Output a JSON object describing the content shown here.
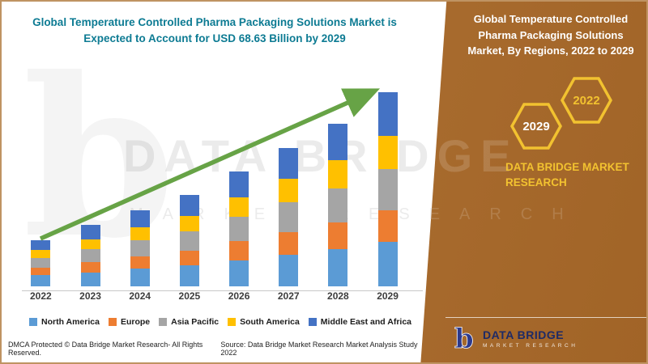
{
  "left_panel": {
    "title": "Global Temperature Controlled Pharma Packaging Solutions Market is Expected to Account for USD 68.63 Billion by 2029",
    "watermark_line1": "DATA BRIDGE",
    "watermark_line2": "MARKET RESEARCH",
    "footer_left": "DMCA Protected © Data Bridge Market Research- All Rights Reserved.",
    "footer_source": "Source: Data Bridge Market Research Market Analysis Study 2022"
  },
  "right_panel": {
    "background_color": "#a96d35",
    "accent_color": "#f2c230",
    "title": "Global Temperature Controlled Pharma Packaging Solutions Market, By Regions, 2022 to 2029",
    "hexagon_back_label": "2022",
    "hexagon_front_label": "2029",
    "brand_text": "DATA BRIDGE MARKET RESEARCH",
    "logo_glyph": "b",
    "logo_text": "DATA BRIDGE",
    "logo_subtext": "MARKET RESEARCH"
  },
  "chart_data": {
    "type": "bar",
    "stacked": true,
    "title": "Global Temperature Controlled Pharma Packaging Solutions Market is Expected to Account for USD 68.63 Billion by 2029",
    "unit": "USD Billion",
    "categories": [
      "2022",
      "2023",
      "2024",
      "2025",
      "2026",
      "2027",
      "2028",
      "2029"
    ],
    "series": [
      {
        "name": "North America",
        "color": "#5b9bd5",
        "values": [
          3.9,
          5.0,
          6.2,
          7.3,
          9.2,
          11.2,
          13.2,
          15.7
        ]
      },
      {
        "name": "Europe",
        "color": "#ed7d31",
        "values": [
          2.8,
          3.6,
          4.5,
          5.3,
          6.7,
          8.1,
          9.5,
          11.2
        ]
      },
      {
        "name": "Asia Pacific",
        "color": "#a5a5a5",
        "values": [
          3.4,
          4.5,
          5.6,
          6.7,
          8.7,
          10.4,
          12.0,
          14.6
        ]
      },
      {
        "name": "South America",
        "color": "#ffc000",
        "values": [
          2.8,
          3.6,
          4.5,
          5.6,
          7.0,
          8.4,
          9.8,
          11.73
        ]
      },
      {
        "name": "Middle East and Africa",
        "color": "#4472c4",
        "values": [
          3.4,
          5.0,
          5.9,
          7.3,
          9.0,
          10.9,
          12.9,
          15.4
        ]
      }
    ],
    "ylim": [
      0,
      70
    ],
    "grid": false,
    "legend_position": "bottom",
    "annotation": "upward trend arrow",
    "trend_arrow_color": "#67a346"
  }
}
